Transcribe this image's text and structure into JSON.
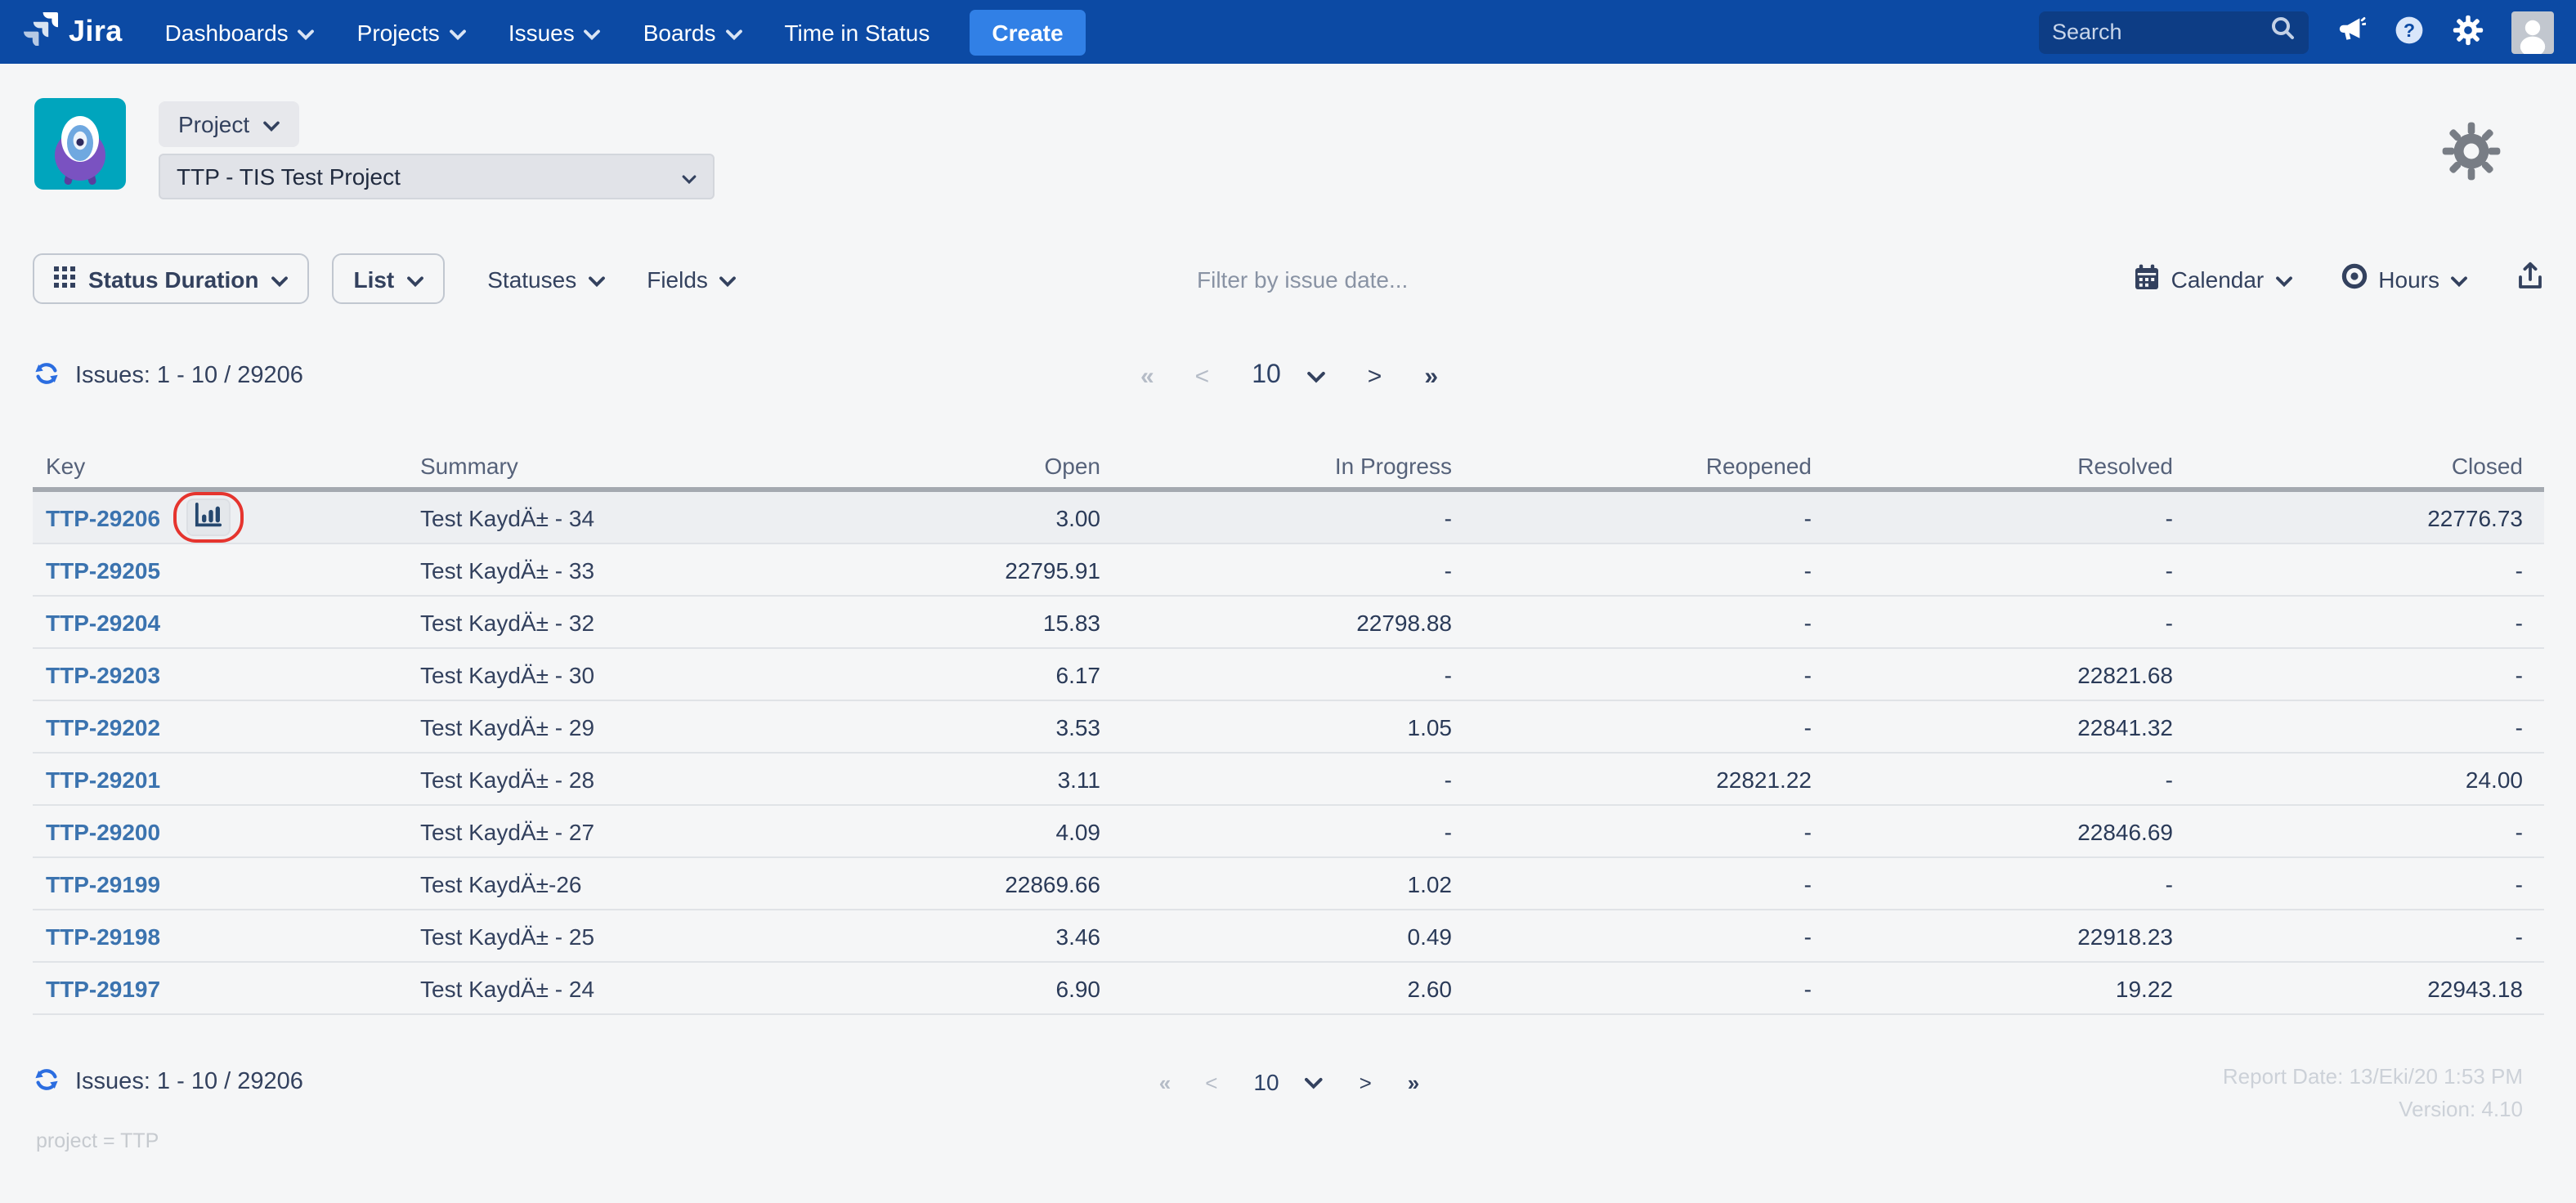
{
  "nav": {
    "brand": "Jira",
    "items": [
      {
        "label": "Dashboards",
        "dropdown": true
      },
      {
        "label": "Projects",
        "dropdown": true
      },
      {
        "label": "Issues",
        "dropdown": true
      },
      {
        "label": "Boards",
        "dropdown": true
      },
      {
        "label": "Time in Status",
        "dropdown": false
      }
    ],
    "create_label": "Create",
    "search_placeholder": "Search"
  },
  "project_header": {
    "scope_button_label": "Project",
    "project_select_value": "TTP - TIS Test Project"
  },
  "toolbar": {
    "report_type_label": "Status Duration",
    "view_label": "List",
    "statuses_label": "Statuses",
    "fields_label": "Fields",
    "filter_placeholder": "Filter by issue date...",
    "calendar_label": "Calendar",
    "hours_label": "Hours"
  },
  "pagination": {
    "issues_label": "Issues: 1 - 10 / 29206",
    "first": "«",
    "prev": "<",
    "page_size": "10",
    "next": ">",
    "last": "»"
  },
  "table": {
    "columns": [
      "Key",
      "Summary",
      "Open",
      "In Progress",
      "Reopened",
      "Resolved",
      "Closed"
    ],
    "rows": [
      {
        "key": "TTP-29206",
        "summary": "Test KaydÄ± - 34",
        "open": "3.00",
        "in_progress": "-",
        "reopened": "-",
        "resolved": "-",
        "closed": "22776.73",
        "highlighted": true,
        "has_chart_button": true
      },
      {
        "key": "TTP-29205",
        "summary": "Test KaydÄ± - 33",
        "open": "22795.91",
        "in_progress": "-",
        "reopened": "-",
        "resolved": "-",
        "closed": "-"
      },
      {
        "key": "TTP-29204",
        "summary": "Test KaydÄ± - 32",
        "open": "15.83",
        "in_progress": "22798.88",
        "reopened": "-",
        "resolved": "-",
        "closed": "-"
      },
      {
        "key": "TTP-29203",
        "summary": "Test KaydÄ± - 30",
        "open": "6.17",
        "in_progress": "-",
        "reopened": "-",
        "resolved": "22821.68",
        "closed": "-"
      },
      {
        "key": "TTP-29202",
        "summary": "Test KaydÄ± - 29",
        "open": "3.53",
        "in_progress": "1.05",
        "reopened": "-",
        "resolved": "22841.32",
        "closed": "-"
      },
      {
        "key": "TTP-29201",
        "summary": "Test KaydÄ± - 28",
        "open": "3.11",
        "in_progress": "-",
        "reopened": "22821.22",
        "resolved": "-",
        "closed": "24.00"
      },
      {
        "key": "TTP-29200",
        "summary": "Test KaydÄ± - 27",
        "open": "4.09",
        "in_progress": "-",
        "reopened": "-",
        "resolved": "22846.69",
        "closed": "-"
      },
      {
        "key": "TTP-29199",
        "summary": "Test KaydÄ±-26",
        "open": "22869.66",
        "in_progress": "1.02",
        "reopened": "-",
        "resolved": "-",
        "closed": "-"
      },
      {
        "key": "TTP-29198",
        "summary": "Test KaydÄ± - 25",
        "open": "3.46",
        "in_progress": "0.49",
        "reopened": "-",
        "resolved": "22918.23",
        "closed": "-"
      },
      {
        "key": "TTP-29197",
        "summary": "Test KaydÄ± - 24",
        "open": "6.90",
        "in_progress": "2.60",
        "reopened": "-",
        "resolved": "19.22",
        "closed": "22943.18"
      }
    ]
  },
  "footer": {
    "report_date": "Report Date: 13/Eki/20 1:53 PM",
    "version": "Version: 4.10",
    "jql": "project = TTP"
  },
  "colors": {
    "navbar": "#0c4aa4",
    "create_button": "#3180e6",
    "search_box": "#0d3d85",
    "key_link": "#3b73af",
    "refresh_icon": "#2b6de0",
    "annotation_ring": "#e5342e",
    "row_highlight": "#edeff2",
    "project_avatar_teal": "#00a5bd"
  }
}
